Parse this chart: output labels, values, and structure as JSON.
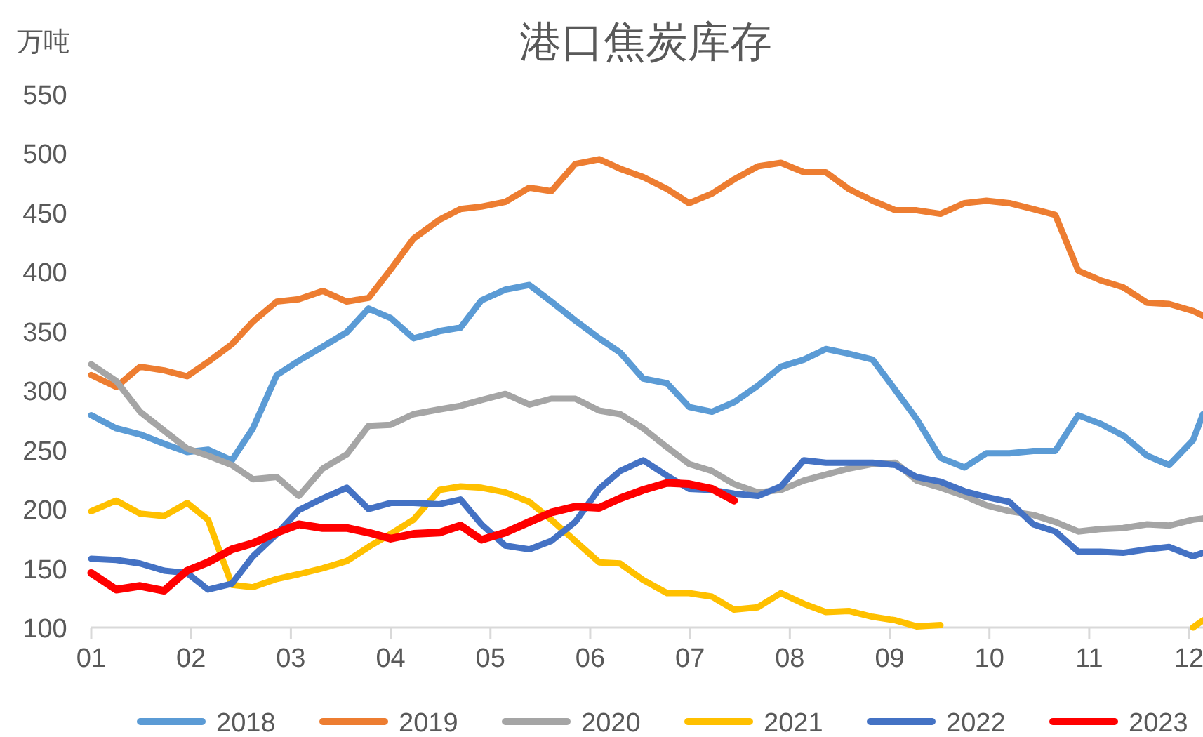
{
  "chart_data": {
    "type": "line",
    "title": "港口焦炭库存",
    "ylabel": "万吨",
    "legend": "bottom",
    "x": [
      1.0,
      1.25,
      1.49,
      1.73,
      1.96,
      2.17,
      2.41,
      2.62,
      2.86,
      3.08,
      3.32,
      3.56,
      3.78,
      4.0,
      4.23,
      4.49,
      4.7,
      4.91,
      5.15,
      5.39,
      5.61,
      5.85,
      6.09,
      6.3,
      6.53,
      6.77,
      6.99,
      7.22,
      7.44,
      7.68,
      7.91,
      8.14,
      8.36,
      8.59,
      8.83,
      9.06,
      9.27,
      9.51,
      9.75,
      9.97,
      10.2,
      10.44,
      10.66,
      10.89,
      11.11,
      11.34,
      11.58,
      11.8,
      12.04,
      12.14
    ],
    "xlim": [
      1,
      12.14
    ],
    "xticks": [
      {
        "value": 1,
        "label": "01"
      },
      {
        "value": 2,
        "label": "02"
      },
      {
        "value": 3,
        "label": "03"
      },
      {
        "value": 4,
        "label": "04"
      },
      {
        "value": 5,
        "label": "05"
      },
      {
        "value": 6,
        "label": "06"
      },
      {
        "value": 7,
        "label": "07"
      },
      {
        "value": 8,
        "label": "08"
      },
      {
        "value": 9,
        "label": "09"
      },
      {
        "value": 10,
        "label": "10"
      },
      {
        "value": 11,
        "label": "11"
      },
      {
        "value": 12,
        "label": "12"
      }
    ],
    "ylim": [
      100,
      550
    ],
    "yticks": [
      100,
      150,
      200,
      250,
      300,
      350,
      400,
      450,
      500,
      550
    ],
    "series": [
      {
        "name": "2018",
        "color": "#5b9bd5",
        "values": [
          279,
          268,
          263,
          255,
          248,
          250,
          241,
          268,
          313,
          325,
          337,
          349,
          369,
          361,
          344,
          350,
          353,
          376,
          385,
          389,
          375,
          359,
          344,
          332,
          310,
          306,
          286,
          282,
          290,
          304,
          320,
          326,
          335,
          331,
          326,
          300,
          276,
          243,
          235,
          247,
          247,
          249,
          249,
          279,
          272,
          262,
          245,
          237,
          258,
          280
        ]
      },
      {
        "name": "2019",
        "color": "#ed7d31",
        "values": [
          313,
          303,
          320,
          317,
          312,
          324,
          339,
          358,
          375,
          377,
          384,
          375,
          378,
          402,
          428,
          444,
          453,
          455,
          459,
          471,
          468,
          491,
          495,
          487,
          480,
          470,
          458,
          466,
          478,
          489,
          492,
          484,
          484,
          470,
          460,
          452,
          452,
          449,
          458,
          460,
          458,
          453,
          448,
          401,
          393,
          387,
          374,
          373,
          367,
          363
        ]
      },
      {
        "name": "2020",
        "color": "#a5a5a5",
        "values": [
          322,
          308,
          282,
          266,
          251,
          245,
          237,
          225,
          227,
          211,
          234,
          246,
          270,
          271,
          280,
          284,
          287,
          292,
          297,
          288,
          293,
          293,
          283,
          280,
          268,
          252,
          238,
          232,
          221,
          214,
          216,
          224,
          229,
          234,
          238,
          239,
          224,
          218,
          211,
          203,
          198,
          195,
          189,
          181,
          183,
          184,
          187,
          186,
          191,
          192
        ]
      },
      {
        "name": "2021",
        "color": "#ffc000",
        "values": [
          198,
          207,
          196,
          194,
          205,
          191,
          136,
          134,
          141,
          145,
          150,
          156,
          168,
          179,
          191,
          216,
          219,
          218,
          214,
          206,
          191,
          173,
          155,
          154,
          140,
          129,
          129,
          126,
          115,
          117,
          129,
          120,
          113,
          114,
          109,
          106,
          101,
          102,
          null,
          null,
          null,
          null,
          null,
          null,
          null,
          null,
          null,
          null,
          100,
          106
        ]
      },
      {
        "name": "2022",
        "color": "#4472c4",
        "values": [
          158,
          157,
          154,
          148,
          146,
          132,
          137,
          160,
          179,
          199,
          209,
          218,
          200,
          205,
          205,
          204,
          208,
          187,
          169,
          166,
          173,
          189,
          217,
          232,
          241,
          228,
          217,
          216,
          213,
          211,
          219,
          241,
          239,
          239,
          239,
          237,
          227,
          223,
          215,
          210,
          206,
          187,
          181,
          164,
          164,
          163,
          166,
          168,
          160,
          163
        ]
      },
      {
        "name": "2023",
        "color": "#ff0000",
        "values": [
          146,
          132,
          135,
          131,
          148,
          155,
          166,
          171,
          180,
          187,
          184,
          184,
          180,
          175,
          179,
          180,
          186,
          174,
          180,
          189,
          197,
          202,
          201,
          209,
          216,
          222,
          221,
          217,
          207,
          null,
          null,
          null,
          null,
          null,
          null,
          null,
          null,
          null,
          null,
          null,
          null,
          null,
          null,
          null,
          null,
          null,
          null,
          null,
          null,
          null
        ]
      }
    ]
  }
}
